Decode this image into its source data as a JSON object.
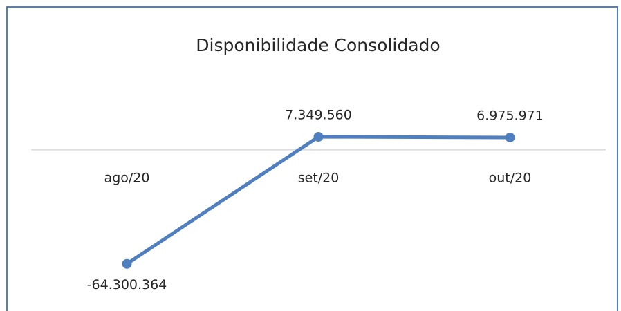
{
  "chart_data": {
    "type": "line",
    "title": "Disponibilidade Consolidado",
    "categories": [
      "ago/20",
      "set/20",
      "out/20"
    ],
    "values": [
      -64300364,
      7349560,
      6975971
    ],
    "value_labels": [
      "-64.300.364",
      "7.349.560",
      "6.975.971"
    ],
    "color": "#4f7fbf",
    "ylim": [
      -80000000,
      60000000
    ]
  }
}
